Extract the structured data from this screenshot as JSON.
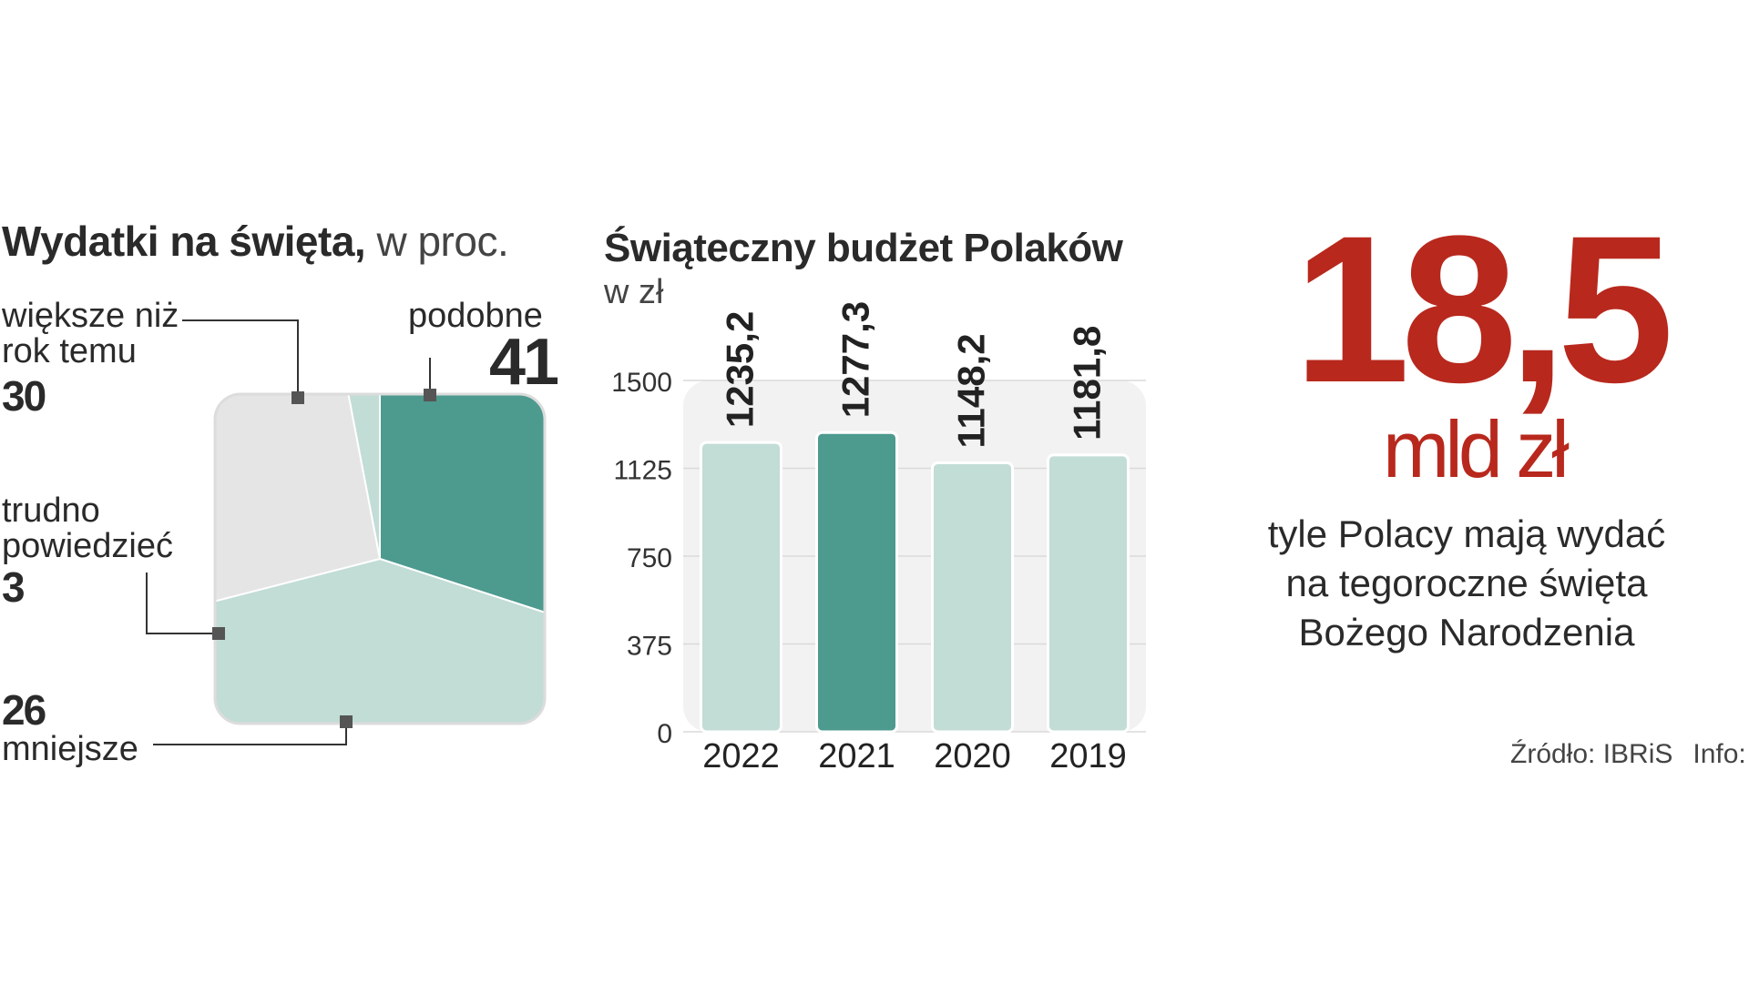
{
  "pie": {
    "title": "Wydatki na święta,",
    "title_suffix": " w proc.",
    "labels": {
      "wieksze_line1": "większe niż",
      "wieksze_line2": "rok temu",
      "trudno_line1": "trudno",
      "trudno_line2": "powiedzieć",
      "mniejsze": "mniejsze",
      "podobne": "podobne"
    }
  },
  "bars": {
    "title": "Świąteczny budżet Polaków",
    "subtitle": "w zł"
  },
  "highlight": {
    "value": "18,5",
    "unit": "mld zł",
    "description_line1": "tyle Polacy mają wydać",
    "description_line2": "na tegoroczne święta",
    "description_line3": "Bożego Narodzenia"
  },
  "source": {
    "source_text": "Źródło: IBRiS",
    "info_text": "Info: S"
  },
  "colors": {
    "dark_teal": "#4d9a8f",
    "light_teal": "#c2dcd6",
    "light_gray": "#e5e5e5",
    "accent_red": "#b8281d"
  },
  "chart_data": [
    {
      "type": "pie",
      "title": "Wydatki na święta, w proc.",
      "slices": [
        {
          "label": "większe niż rok temu",
          "value": 30
        },
        {
          "label": "podobne",
          "value": 41
        },
        {
          "label": "mniejsze",
          "value": 26
        },
        {
          "label": "trudno powiedzieć",
          "value": 3
        }
      ],
      "value_labels": [
        "30",
        "41",
        "26",
        "3"
      ]
    },
    {
      "type": "bar",
      "title": "Świąteczny budżet Polaków",
      "ylabel": "w zł",
      "categories": [
        "2022",
        "2021",
        "2020",
        "2019"
      ],
      "values": [
        1235.2,
        1277.3,
        1148.2,
        1181.8
      ],
      "value_labels": [
        "1235,2",
        "1277,3",
        "1148,2",
        "1181,8"
      ],
      "highlight_index": 1,
      "yticks": [
        "0",
        "375",
        "750",
        "1125",
        "1500"
      ],
      "ytick_values": [
        0,
        375,
        750,
        1125,
        1500
      ],
      "ylim": [
        0,
        1500
      ],
      "grid": true,
      "legend": "none"
    }
  ]
}
